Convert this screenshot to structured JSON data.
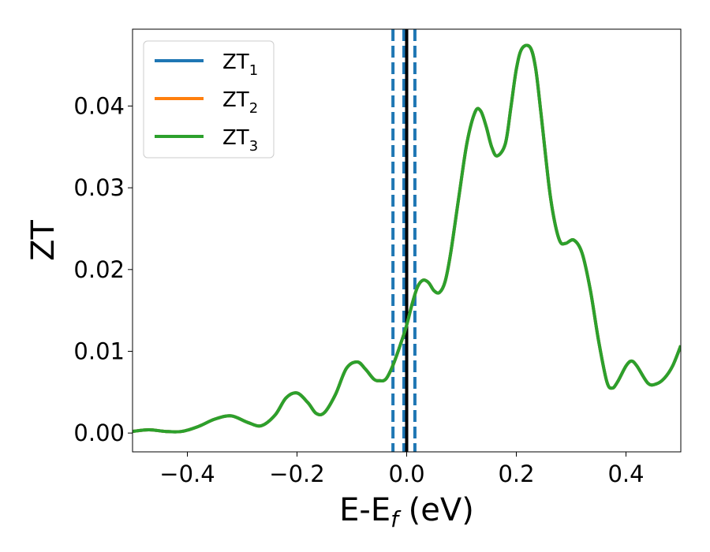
{
  "chart_data": {
    "type": "line",
    "title": "",
    "xlabel": {
      "main": "E-E",
      "sub": "f",
      "suffix": " (eV)"
    },
    "ylabel": "ZT",
    "xlim": [
      -0.5,
      0.5
    ],
    "ylim": [
      -0.0023,
      0.0494
    ],
    "xticks": [
      -0.4,
      -0.2,
      0.0,
      0.2,
      0.4
    ],
    "xtick_labels": [
      "−0.4",
      "−0.2",
      "0.0",
      "0.2",
      "0.4"
    ],
    "yticks": [
      0.0,
      0.01,
      0.02,
      0.03,
      0.04
    ],
    "ytick_labels": [
      "0.00",
      "0.01",
      "0.02",
      "0.03",
      "0.04"
    ],
    "legend_position": "upper-left",
    "series": [
      {
        "name": "ZT",
        "subscript": "1",
        "color": "#1f77b4"
      },
      {
        "name": "ZT",
        "subscript": "2",
        "color": "#ff7f0e"
      },
      {
        "name": "ZT",
        "subscript": "3",
        "color": "#2ca02c"
      }
    ],
    "curve": {
      "x": [
        -0.5,
        -0.47,
        -0.44,
        -0.41,
        -0.38,
        -0.35,
        -0.32,
        -0.29,
        -0.265,
        -0.24,
        -0.22,
        -0.2,
        -0.18,
        -0.165,
        -0.15,
        -0.13,
        -0.11,
        -0.09,
        -0.075,
        -0.06,
        -0.05,
        -0.038,
        -0.025,
        -0.01,
        0.0,
        0.01,
        0.02,
        0.03,
        0.04,
        0.05,
        0.06,
        0.07,
        0.08,
        0.095,
        0.11,
        0.125,
        0.135,
        0.145,
        0.155,
        0.165,
        0.18,
        0.19,
        0.2,
        0.21,
        0.225,
        0.235,
        0.245,
        0.26,
        0.27,
        0.28,
        0.29,
        0.305,
        0.32,
        0.335,
        0.35,
        0.365,
        0.375,
        0.385,
        0.4,
        0.41,
        0.42,
        0.44,
        0.455,
        0.47,
        0.485,
        0.5
      ],
      "y": [
        0.0002,
        0.0004,
        0.0002,
        0.0002,
        0.0008,
        0.0017,
        0.0021,
        0.0013,
        0.0009,
        0.0022,
        0.0043,
        0.0049,
        0.0037,
        0.0024,
        0.0025,
        0.0047,
        0.0079,
        0.0087,
        0.0078,
        0.0066,
        0.0064,
        0.0066,
        0.0083,
        0.0111,
        0.0132,
        0.0158,
        0.0179,
        0.0187,
        0.0184,
        0.0174,
        0.0172,
        0.0185,
        0.0219,
        0.0288,
        0.0355,
        0.0393,
        0.0394,
        0.0375,
        0.035,
        0.0339,
        0.0354,
        0.0398,
        0.0445,
        0.047,
        0.0472,
        0.0447,
        0.0391,
        0.03,
        0.0258,
        0.0234,
        0.0232,
        0.0236,
        0.022,
        0.0175,
        0.0113,
        0.0063,
        0.0055,
        0.0063,
        0.0082,
        0.0088,
        0.0082,
        0.0061,
        0.006,
        0.0067,
        0.0082,
        0.0107
      ]
    },
    "vlines": [
      {
        "x": -0.025,
        "style": "dashed",
        "color": "#1f77b4"
      },
      {
        "x": -0.005,
        "style": "dashed",
        "color": "#1f77b4"
      },
      {
        "x": 0.015,
        "style": "dashed",
        "color": "#1f77b4"
      },
      {
        "x": 0.0,
        "style": "solid",
        "color": "#000000"
      }
    ]
  }
}
